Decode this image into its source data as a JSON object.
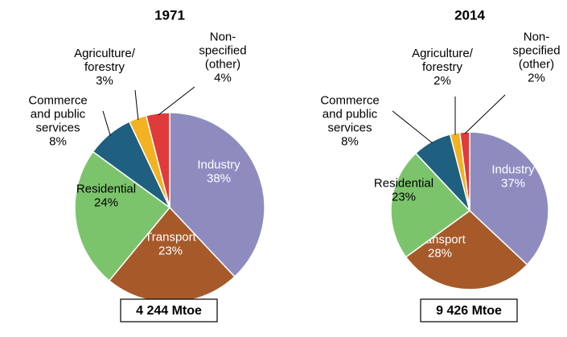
{
  "chart_data": [
    {
      "type": "pie",
      "title": "1971",
      "categories": [
        "Industry",
        "Transport",
        "Residential",
        "Commerce\nand public\nservices",
        "Agriculture/\nforestry",
        "Non-\nspecified\n(other)"
      ],
      "values": [
        38,
        23,
        24,
        8,
        3,
        4
      ],
      "value_labels": [
        "38%",
        "23%",
        "24%",
        "8%",
        "3%",
        "4%"
      ],
      "colors": [
        "#8e8cbf",
        "#a65a2a",
        "#7cc46c",
        "#1f5f7f",
        "#f3b221",
        "#e03b3b"
      ],
      "footer": "4 244 Mtoe"
    },
    {
      "type": "pie",
      "title": "2014",
      "categories": [
        "Industry",
        "Transport",
        "Residential",
        "Commerce\nand public\nservices",
        "Agriculture/\nforestry",
        "Non-\nspecified\n(other)"
      ],
      "values": [
        37,
        28,
        23,
        8,
        2,
        2
      ],
      "value_labels": [
        "37%",
        "28%",
        "23%",
        "8%",
        "2%",
        "2%"
      ],
      "colors": [
        "#8e8cbf",
        "#a65a2a",
        "#7cc46c",
        "#1f5f7f",
        "#f3b221",
        "#e03b3b"
      ],
      "footer": "9 426 Mtoe"
    }
  ]
}
